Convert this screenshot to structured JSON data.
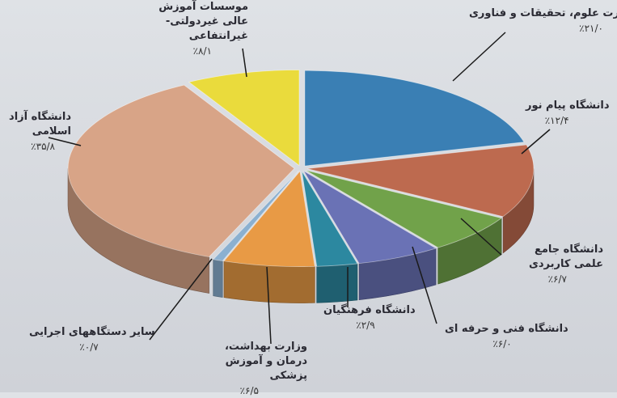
{
  "chart_data": {
    "type": "pie",
    "title": "",
    "slices": [
      {
        "label": "وزارت علوم، تحقیقات و فناوری",
        "pct_text": "٪۲۱/۰",
        "value": 21.0,
        "color": "#3a7fb4"
      },
      {
        "label": "دانشگاه پیام نور",
        "pct_text": "٪۱۲/۴",
        "value": 12.4,
        "color": "#bd6a4f"
      },
      {
        "label": "دانشگاه جامع علمی کاربردی",
        "pct_text": "٪۶/۷",
        "value": 6.7,
        "color": "#71a24a"
      },
      {
        "label": "دانشگاه فنی و حرفه ای",
        "pct_text": "٪۶/۰",
        "value": 6.0,
        "color": "#6a72b5"
      },
      {
        "label": "دانشگاه فرهنگیان",
        "pct_text": "٪۲/۹",
        "value": 2.9,
        "color": "#2c88a0"
      },
      {
        "label": "وزارت بهداشت، درمان و آموزش پزشکی",
        "pct_text": "٪۶/۵",
        "value": 6.5,
        "color": "#e89a45"
      },
      {
        "label": "سایر دستگاههای اجرایی",
        "pct_text": "٪۰/۷",
        "value": 0.7,
        "color": "#8bb0d0"
      },
      {
        "label": "دانشگاه آزاد اسلامی",
        "pct_text": "٪۳۵/۸",
        "value": 35.8,
        "color": "#d8a487"
      },
      {
        "label": "موسسات آموزش عالی غیردولتی-غیرانتفاعی",
        "pct_text": "٪۸/۱",
        "value": 8.1,
        "color": "#eadb3c"
      }
    ]
  }
}
